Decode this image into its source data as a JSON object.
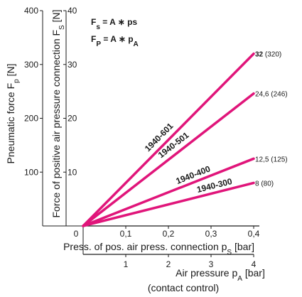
{
  "chart_data": {
    "type": "line",
    "formulas": [
      {
        "lhs": "F",
        "lhs_sub": "s",
        "mid": " = A ",
        "op": "∗",
        "rhs": " ps",
        "rhs_sub": ""
      },
      {
        "lhs": "F",
        "lhs_sub": "P",
        "mid": " = A ",
        "op": "∗",
        "rhs": " p",
        "rhs_sub": "A"
      }
    ],
    "x_axis_primary": {
      "label": "Press. of pos. air press. connection p",
      "label_sub": "S",
      "label_unit": " [bar]",
      "range": [
        0,
        0.4
      ],
      "ticks": [
        0,
        0.1,
        0.2,
        0.3,
        0.4
      ],
      "tick_labels": [
        "0",
        "0,1",
        "0,2",
        "0,3",
        "0,4"
      ]
    },
    "x_axis_secondary": {
      "label": "Air pressure p",
      "label_sub": "A",
      "label_unit": " [bar]",
      "label_line2": "(contact control)",
      "range": [
        0,
        4
      ],
      "ticks": [
        1,
        2,
        3,
        4
      ],
      "tick_labels": [
        "1",
        "2",
        "3",
        "4"
      ]
    },
    "y_axis_inner": {
      "label": "Force of positive air pressure connection F",
      "label_sub": "S",
      "label_unit": " [N]",
      "range": [
        0,
        40
      ],
      "ticks": [
        10,
        20,
        30,
        40
      ],
      "tick_labels": [
        "10",
        "20",
        "30",
        "40"
      ]
    },
    "y_axis_outer": {
      "label": "Pneumatic force F",
      "label_sub": "p",
      "label_unit": " [N]",
      "range": [
        0,
        400
      ],
      "ticks": [
        100,
        200,
        300,
        400
      ],
      "tick_labels": [
        "100",
        "200",
        "300",
        "400"
      ]
    },
    "series": [
      {
        "name": "1940-601",
        "x": [
          0,
          0.4
        ],
        "y": [
          0,
          32
        ],
        "end_label": "32",
        "end_label_paren": "(320)",
        "end_bold": true
      },
      {
        "name": "1940-501",
        "x": [
          0,
          0.4
        ],
        "y": [
          0,
          24.6
        ],
        "end_label": "24,6",
        "end_label_paren": "(246)",
        "end_bold": false
      },
      {
        "name": "1940-400",
        "x": [
          0,
          0.4
        ],
        "y": [
          0,
          12.5
        ],
        "end_label": "12,5",
        "end_label_paren": "(125)",
        "end_bold": false
      },
      {
        "name": "1940-300",
        "x": [
          0,
          0.4
        ],
        "y": [
          0,
          8
        ],
        "end_label": "8",
        "end_label_paren": "(80)",
        "end_bold": false
      }
    ],
    "line_color": "#e0157a",
    "grid": false
  }
}
